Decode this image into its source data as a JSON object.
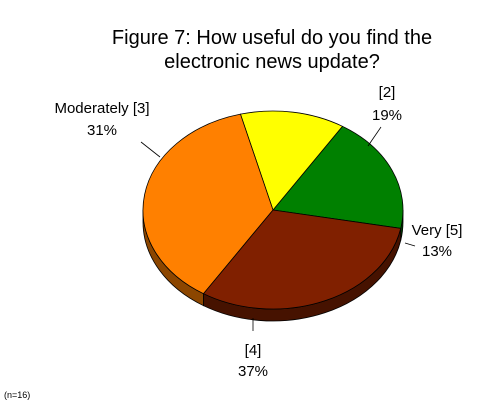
{
  "chart_data": {
    "type": "pie",
    "title": [
      "Figure 7: How useful do you find the",
      "electronic news update?"
    ],
    "slices": [
      {
        "label": "[2]",
        "value": 19,
        "display": "19%",
        "color": "#008000"
      },
      {
        "label": "Very [5]",
        "value": 13,
        "display": "13%",
        "color": "#ffff00"
      },
      {
        "label": "[4]",
        "value": 37,
        "display": "37%",
        "color": "#ff8000"
      },
      {
        "label": "Moderately [3]",
        "value": 31,
        "display": "31%",
        "color": "#802000"
      }
    ],
    "note": "(n=16)",
    "style": "3d-tilted"
  }
}
